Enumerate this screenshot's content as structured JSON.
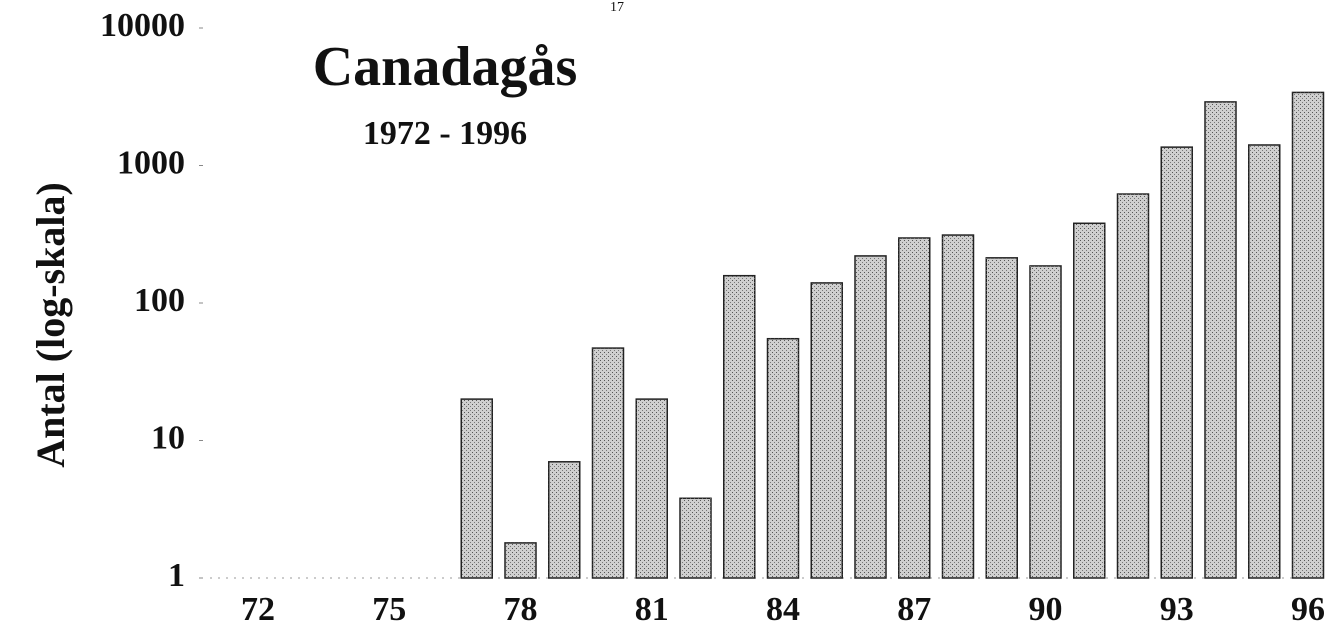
{
  "chart_data": {
    "type": "bar",
    "title": "Canadagås",
    "subtitle": "1972 - 1996",
    "page_number": "17",
    "y_label": "Antal (log-skala)",
    "y_log": true,
    "categories": [
      "72",
      null,
      null,
      "75",
      null,
      null,
      "78",
      null,
      null,
      "81",
      null,
      null,
      "84",
      null,
      null,
      "87",
      null,
      null,
      "90",
      null,
      null,
      "93",
      null,
      null,
      "96"
    ],
    "values": [
      null,
      null,
      null,
      null,
      null,
      20,
      1.8,
      7,
      47,
      20,
      3.8,
      158,
      55,
      140,
      220,
      297,
      312,
      213,
      186,
      380,
      620,
      1360,
      2900,
      1410,
      3400
    ],
    "color": "#cfcfcf",
    "ylim": [
      1,
      10000
    ],
    "yticks": [
      1,
      10,
      100,
      1000,
      10000
    ]
  }
}
